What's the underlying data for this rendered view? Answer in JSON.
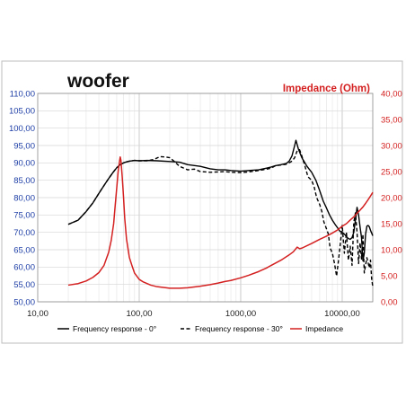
{
  "chart_data": {
    "type": "line",
    "title": "woofer",
    "y2label": "Impedance (Ohm)",
    "xscale": "log",
    "xlim": [
      10,
      20000
    ],
    "ylim": [
      50,
      110
    ],
    "y2lim": [
      0,
      40
    ],
    "xtick_labels": [
      "10,00",
      "100,00",
      "1000,00",
      "10000,00"
    ],
    "ytick_labels": [
      "50,00",
      "55,00",
      "60,00",
      "65,00",
      "70,00",
      "75,00",
      "80,00",
      "85,00",
      "90,00",
      "95,00",
      "100,00",
      "105,00",
      "110,00"
    ],
    "y2tick_labels": [
      "0,00",
      "5,00",
      "10,00",
      "15,00",
      "20,00",
      "25,00",
      "30,00",
      "35,00",
      "40,00"
    ],
    "grid": true,
    "legend_position": "bottom",
    "colors": {
      "left_axis": "#1f3fa6",
      "right_axis": "#d42020",
      "spl": "#000000",
      "impedance": "#d42020"
    },
    "series": [
      {
        "name": "Frequency response - 0°",
        "axis": "left",
        "style": "solid",
        "color": "#000000",
        "x": [
          20,
          25,
          30,
          35,
          40,
          45,
          50,
          55,
          60,
          65,
          70,
          75,
          80,
          90,
          100,
          120,
          150,
          200,
          250,
          300,
          400,
          500,
          600,
          700,
          800,
          1000,
          1200,
          1500,
          1800,
          2000,
          2200,
          2500,
          2800,
          3000,
          3200,
          3400,
          3500,
          3700,
          4000,
          4500,
          5000,
          5500,
          6000,
          6500,
          7000,
          7500,
          8000,
          8500,
          9000,
          9500,
          10000,
          10500,
          11000,
          11500,
          12000,
          12500,
          13000,
          13500,
          14000,
          14500,
          15000,
          15500,
          16000,
          16500,
          17000,
          17500,
          18000,
          18500,
          19000,
          19500,
          20000
        ],
        "y": [
          72.3,
          73.5,
          76,
          78.5,
          81.2,
          83.5,
          85.5,
          87.2,
          88.6,
          89.5,
          90,
          90.3,
          90.5,
          90.7,
          90.6,
          90.7,
          90.6,
          90.4,
          90.2,
          89.5,
          89,
          88.3,
          88,
          88,
          87.8,
          87.6,
          87.8,
          88,
          88.5,
          88.8,
          89.2,
          89.5,
          89.8,
          90.5,
          92,
          95,
          96.5,
          94,
          91.5,
          89,
          87.3,
          85,
          82,
          79,
          77,
          75,
          73.5,
          72.3,
          71.3,
          70.3,
          70,
          69.5,
          68.8,
          68.2,
          68,
          68.5,
          70,
          73.5,
          77.2,
          75,
          71.5,
          68.5,
          61.8,
          64,
          69.5,
          71.8,
          72,
          71.6,
          70.6,
          69.8,
          69
        ]
      },
      {
        "name": "Frequency response - 30°",
        "axis": "left",
        "style": "dashed",
        "color": "#000000",
        "x": [
          20,
          25,
          30,
          35,
          40,
          45,
          50,
          55,
          60,
          65,
          70,
          75,
          80,
          90,
          100,
          120,
          140,
          160,
          180,
          200,
          220,
          250,
          300,
          350,
          400,
          500,
          600,
          700,
          800,
          1000,
          1200,
          1500,
          1800,
          2000,
          2200,
          2500,
          2800,
          3000,
          3200,
          3400,
          3600,
          3800,
          4000,
          4300,
          4600,
          5000,
          5300,
          5600,
          6000,
          6300,
          6600,
          7000,
          7300,
          7600,
          8000,
          8400,
          8800,
          9200,
          9600,
          10000,
          10500,
          11000,
          11500,
          12000,
          12500,
          13000,
          13500,
          14000,
          14500,
          15000,
          15500,
          16000,
          16500,
          17000,
          17500,
          18000,
          18500,
          19000,
          19500,
          20000
        ],
        "y": [
          72.3,
          73.5,
          76,
          78.5,
          81.2,
          83.5,
          85.5,
          87.2,
          88.6,
          89.5,
          90,
          90.3,
          90.5,
          90.7,
          90.6,
          90.6,
          91,
          91.8,
          91.7,
          91.5,
          90.5,
          89,
          88,
          88.2,
          87.5,
          87.3,
          87.4,
          87.5,
          87.3,
          87.2,
          87.4,
          87.8,
          88.2,
          88.5,
          89.2,
          89.4,
          89.6,
          90,
          90.5,
          91.5,
          93.5,
          93.8,
          92,
          89,
          86,
          85,
          83,
          80,
          78,
          76,
          73,
          71,
          69.5,
          65.5,
          64,
          61,
          57.4,
          62,
          67,
          72,
          64,
          70,
          62,
          66,
          60.5,
          72.8,
          75.6,
          70,
          61,
          67,
          62.3,
          69.5,
          58.3,
          60.6,
          62.7,
          61.2,
          59.8,
          62,
          56.5,
          54.5
        ]
      },
      {
        "name": "Impedance",
        "axis": "right",
        "style": "solid",
        "color": "#d42020",
        "x": [
          20,
          25,
          30,
          35,
          40,
          45,
          50,
          53,
          56,
          58,
          60,
          62,
          64,
          65,
          66,
          68,
          70,
          72,
          75,
          80,
          85,
          90,
          100,
          110,
          130,
          150,
          200,
          250,
          300,
          400,
          500,
          600,
          700,
          800,
          1000,
          1200,
          1500,
          1800,
          2000,
          2500,
          3000,
          3300,
          3600,
          3800,
          4000,
          5000,
          6000,
          7000,
          8000,
          9000,
          10000,
          11000,
          12000,
          13000,
          14000,
          15000,
          16000,
          17000,
          18000,
          19000,
          20000
        ],
        "y": [
          3.2,
          3.5,
          4,
          4.7,
          5.6,
          7,
          9.5,
          11.8,
          15,
          18.5,
          21.8,
          25,
          27,
          27.8,
          27.2,
          24,
          20.2,
          16,
          12,
          8.5,
          6.9,
          5.5,
          4.3,
          3.8,
          3.2,
          2.9,
          2.6,
          2.6,
          2.7,
          3,
          3.3,
          3.6,
          3.9,
          4.1,
          4.6,
          5.1,
          5.8,
          6.5,
          7,
          8,
          9,
          9.6,
          10.5,
          10.2,
          10.3,
          11.2,
          12,
          12.6,
          13.2,
          13.8,
          14.5,
          15,
          15.7,
          16.3,
          17,
          17.6,
          18.2,
          18.9,
          19.6,
          20.3,
          21
        ]
      }
    ]
  }
}
